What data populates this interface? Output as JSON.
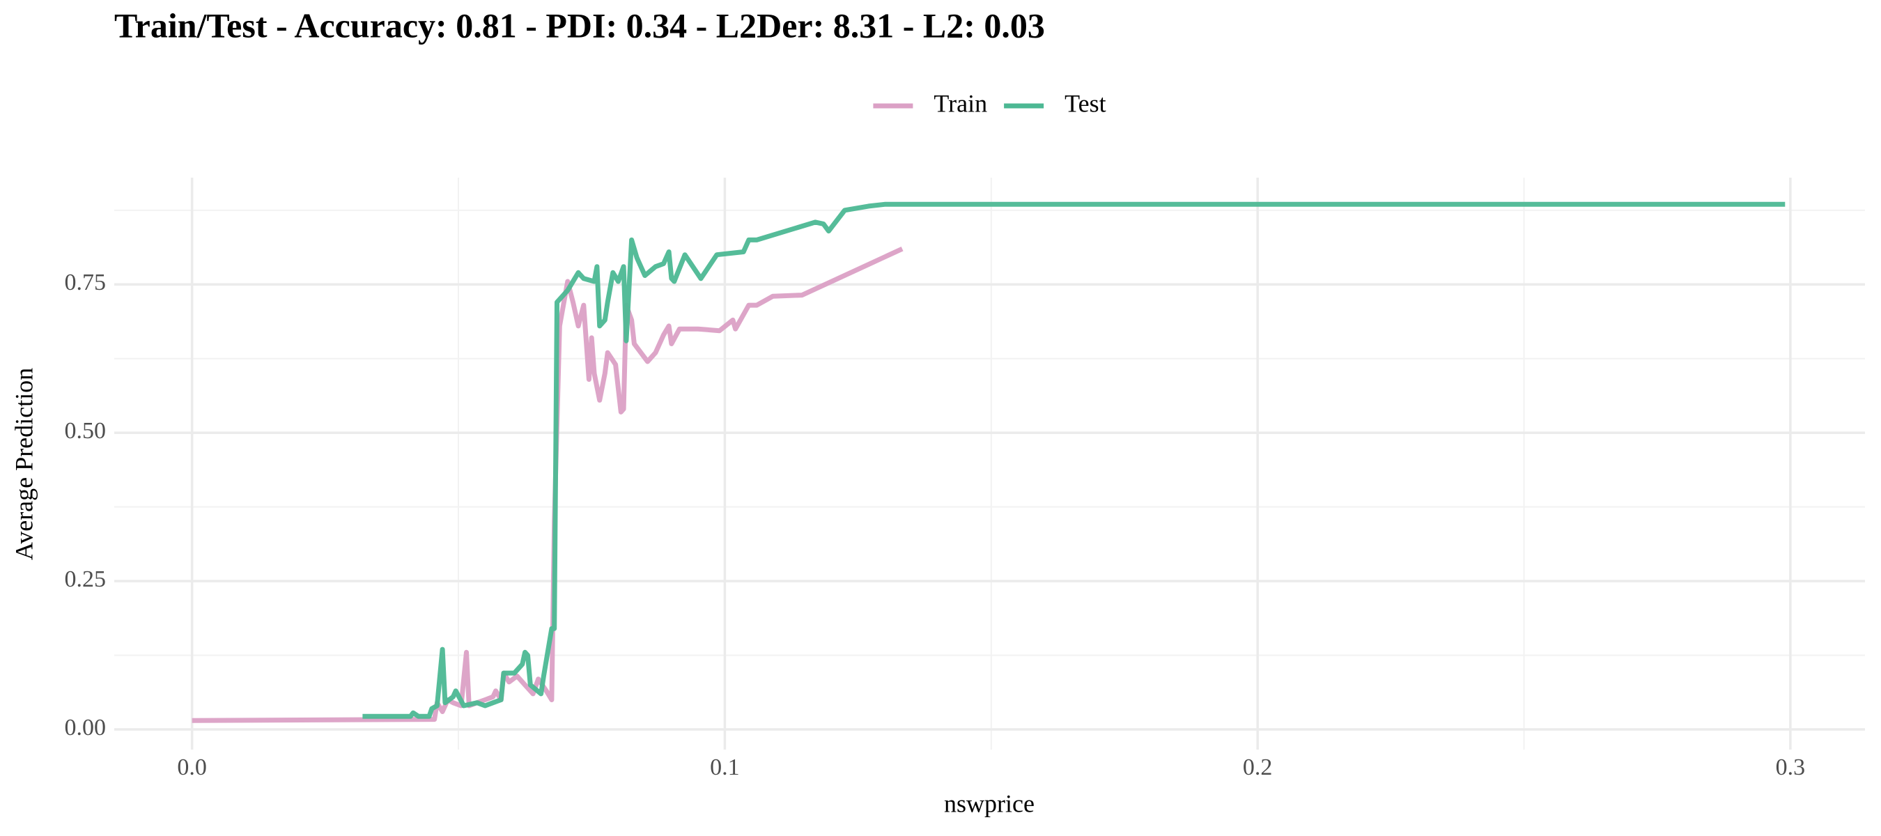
{
  "chart_data": {
    "type": "line",
    "title": "Train/Test - Accuracy: 0.81 - PDI: 0.34 - L2Der: 8.31 - L2: 0.03",
    "x_label": "nswprice",
    "y_label": "Average Prediction",
    "xlim": [
      -0.0146,
      0.314
    ],
    "ylim": [
      -0.034,
      0.93
    ],
    "xticks": [
      {
        "value": 0,
        "label": "0.0"
      },
      0.1,
      0.2,
      0.3
    ],
    "yticks": [
      {
        "value": 0,
        "label": "0.00"
      },
      {
        "value": 0.25,
        "label": "0.25"
      },
      {
        "value": 0.5,
        "label": "0.50"
      },
      {
        "value": 0.75,
        "label": "0.75"
      }
    ],
    "grid": true,
    "minor_grid": true,
    "legend": "top",
    "series": [
      {
        "name": "Train",
        "color": "#dba0c5",
        "x": [
          0,
          0.0455,
          0.046,
          0.047,
          0.048,
          0.049,
          0.0505,
          0.0515,
          0.052,
          0.0535,
          0.055,
          0.0565,
          0.057,
          0.058,
          0.0585,
          0.0595,
          0.061,
          0.0625,
          0.064,
          0.065,
          0.0665,
          0.0675,
          0.068,
          0.069,
          0.0705,
          0.0715,
          0.0725,
          0.0735,
          0.0745,
          0.075,
          0.0755,
          0.0765,
          0.0775,
          0.078,
          0.0795,
          0.0805,
          0.081,
          0.0815,
          0.0825,
          0.083,
          0.0855,
          0.087,
          0.0885,
          0.0895,
          0.09,
          0.0915,
          0.095,
          0.099,
          0.1015,
          0.102,
          0.1045,
          0.106,
          0.109,
          0.1145,
          0.1333
        ],
        "values": [
          0.015,
          0.017,
          0.045,
          0.03,
          0.05,
          0.045,
          0.04,
          0.13,
          0.04,
          0.045,
          0.05,
          0.055,
          0.065,
          0.05,
          0.095,
          0.08,
          0.09,
          0.075,
          0.06,
          0.085,
          0.065,
          0.05,
          0.35,
          0.68,
          0.755,
          0.72,
          0.68,
          0.715,
          0.59,
          0.66,
          0.6,
          0.555,
          0.6,
          0.635,
          0.615,
          0.535,
          0.54,
          0.715,
          0.69,
          0.65,
          0.62,
          0.635,
          0.665,
          0.68,
          0.65,
          0.675,
          0.675,
          0.672,
          0.69,
          0.675,
          0.715,
          0.715,
          0.73,
          0.732,
          0.81
        ]
      },
      {
        "name": "Test",
        "color": "#4cb893",
        "x": [
          0.032,
          0.041,
          0.0415,
          0.0425,
          0.0445,
          0.045,
          0.046,
          0.047,
          0.0475,
          0.049,
          0.0495,
          0.051,
          0.0535,
          0.055,
          0.0565,
          0.058,
          0.0585,
          0.0605,
          0.062,
          0.0625,
          0.063,
          0.0635,
          0.0655,
          0.066,
          0.0675,
          0.068,
          0.0685,
          0.0705,
          0.0725,
          0.0735,
          0.0755,
          0.076,
          0.0765,
          0.0775,
          0.078,
          0.079,
          0.08,
          0.081,
          0.0815,
          0.0825,
          0.0835,
          0.085,
          0.087,
          0.0885,
          0.0895,
          0.09,
          0.0905,
          0.0925,
          0.0955,
          0.0985,
          0.1035,
          0.1045,
          0.106,
          0.117,
          0.1185,
          0.1195,
          0.1225,
          0.127,
          0.13,
          0.299
        ],
        "values": [
          0.022,
          0.022,
          0.028,
          0.022,
          0.022,
          0.035,
          0.04,
          0.135,
          0.045,
          0.055,
          0.065,
          0.04,
          0.045,
          0.04,
          0.045,
          0.05,
          0.095,
          0.095,
          0.11,
          0.13,
          0.125,
          0.075,
          0.06,
          0.09,
          0.17,
          0.17,
          0.72,
          0.74,
          0.77,
          0.76,
          0.755,
          0.78,
          0.68,
          0.69,
          0.72,
          0.77,
          0.755,
          0.78,
          0.655,
          0.825,
          0.795,
          0.765,
          0.78,
          0.785,
          0.805,
          0.76,
          0.755,
          0.8,
          0.76,
          0.8,
          0.805,
          0.825,
          0.825,
          0.855,
          0.852,
          0.84,
          0.875,
          0.882,
          0.885,
          0.885
        ]
      }
    ]
  }
}
